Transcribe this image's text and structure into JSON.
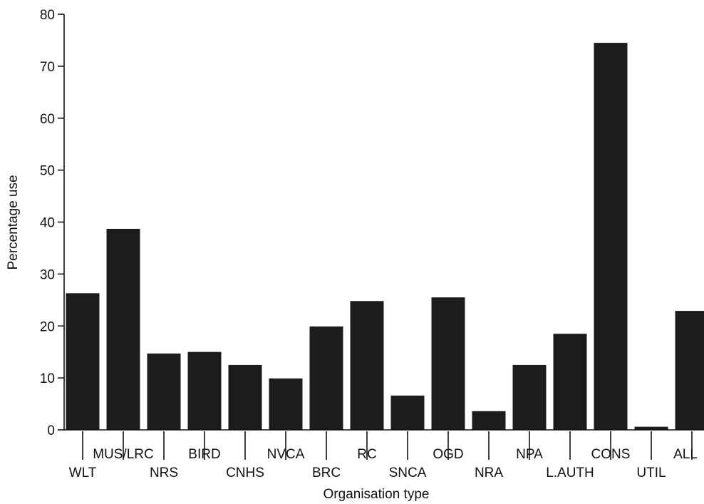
{
  "chart_data": {
    "type": "bar",
    "title": "",
    "xlabel": "Organisation type",
    "ylabel": "Percentage use",
    "ylim": [
      0,
      80
    ],
    "yticks": [
      0,
      10,
      20,
      30,
      40,
      50,
      60,
      70,
      80
    ],
    "grid": false,
    "categories": [
      "WLT",
      "MUS/LRC",
      "NRS",
      "BIRD",
      "CNHS",
      "NVCA",
      "BRC",
      "RC",
      "SNCA",
      "OGD",
      "NRA",
      "NPA",
      "L.AUTH",
      "CONS",
      "UTIL",
      "ALL"
    ],
    "values": [
      26.3,
      38.7,
      14.7,
      15.0,
      12.5,
      9.9,
      19.9,
      24.8,
      6.6,
      25.5,
      3.6,
      12.5,
      18.5,
      74.5,
      0.6,
      22.9
    ],
    "bar_color": "#1c1c1c"
  }
}
